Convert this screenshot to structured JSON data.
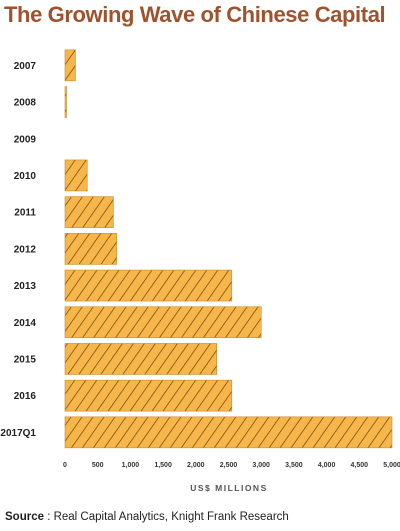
{
  "chart_data": {
    "type": "bar",
    "orientation": "horizontal",
    "title": "The Growing Wave of Chinese Capital",
    "categories": [
      "2007",
      "2008",
      "2009",
      "2010",
      "2011",
      "2012",
      "2013",
      "2014",
      "2015",
      "2016",
      "2017Q1"
    ],
    "values": [
      160,
      20,
      0,
      340,
      740,
      790,
      2550,
      3000,
      2320,
      2550,
      5000
    ],
    "xlabel": "US$ MILLIONS",
    "ylabel": "",
    "xlim": [
      0,
      5000
    ],
    "xticks": [
      "0",
      "500",
      "1,000",
      "1,500",
      "2,000",
      "2,500",
      "3,000",
      "3,500",
      "4,000",
      "4,500",
      "5,000"
    ],
    "grid": false,
    "bar_color": "#f7b64a",
    "hatch_color": "#5a3a10",
    "title_color": "#a0522d"
  },
  "source": {
    "label": "Source",
    "text": " : Real Capital Analytics, Knight Frank Research"
  }
}
